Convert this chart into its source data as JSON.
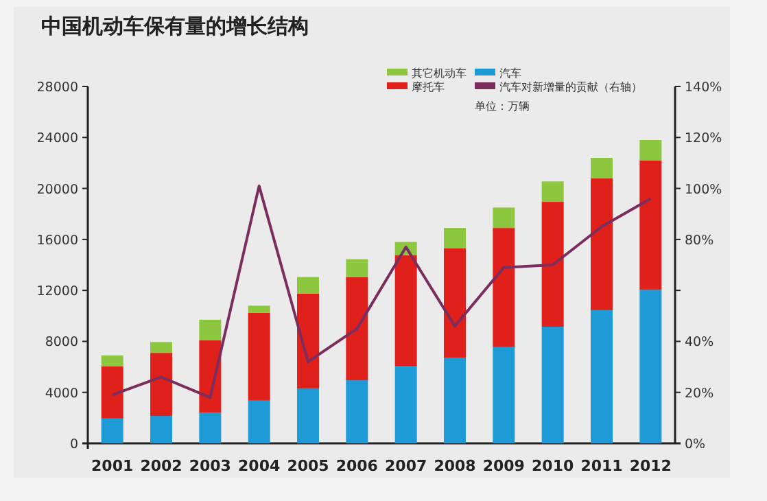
{
  "chart_data": {
    "type": "bar",
    "stacked": true,
    "title": "中国机动车保有量的增长结构",
    "categories": [
      "2001",
      "2002",
      "2003",
      "2004",
      "2005",
      "2006",
      "2007",
      "2008",
      "2009",
      "2010",
      "2011",
      "2012"
    ],
    "series": [
      {
        "name": "汽车",
        "color": "#1e9ad6",
        "values": [
          1950,
          2150,
          2400,
          3350,
          4300,
          4950,
          6050,
          6700,
          7550,
          9150,
          10450,
          12050
        ]
      },
      {
        "name": "摩托车",
        "color": "#e0201b",
        "values": [
          4100,
          4950,
          5700,
          6900,
          7450,
          8100,
          8700,
          8600,
          9350,
          9800,
          10350,
          10150
        ]
      },
      {
        "name": "其它机动车",
        "color": "#8dc63f",
        "values": [
          850,
          850,
          1600,
          550,
          1300,
          1400,
          1050,
          1600,
          1600,
          1600,
          1600,
          1600
        ]
      },
      {
        "name": "汽车对新增量的贡献（右轴）",
        "color": "#7b2d5e",
        "type": "line",
        "axis": "y2",
        "values": [
          19,
          26,
          18,
          101,
          32,
          45,
          77,
          46,
          69,
          70,
          85,
          96
        ]
      }
    ],
    "ylim": [
      0,
      28000
    ],
    "yticks": [
      0,
      4000,
      8000,
      12000,
      16000,
      20000,
      24000,
      28000
    ],
    "y2lim": [
      0,
      140
    ],
    "y2ticks": [
      {
        "value": 0,
        "label": "0%"
      },
      {
        "value": 20,
        "label": "20%"
      },
      {
        "value": 40,
        "label": "40%"
      },
      {
        "value": 60,
        "label": null
      },
      {
        "value": 80,
        "label": "80%"
      },
      {
        "value": 100,
        "label": "100%"
      },
      {
        "value": 120,
        "label": "120%"
      },
      {
        "value": 140,
        "label": "140%"
      }
    ],
    "legend": "top",
    "grid": false,
    "marker": "none",
    "annotations": [
      "单位：万辆"
    ]
  }
}
